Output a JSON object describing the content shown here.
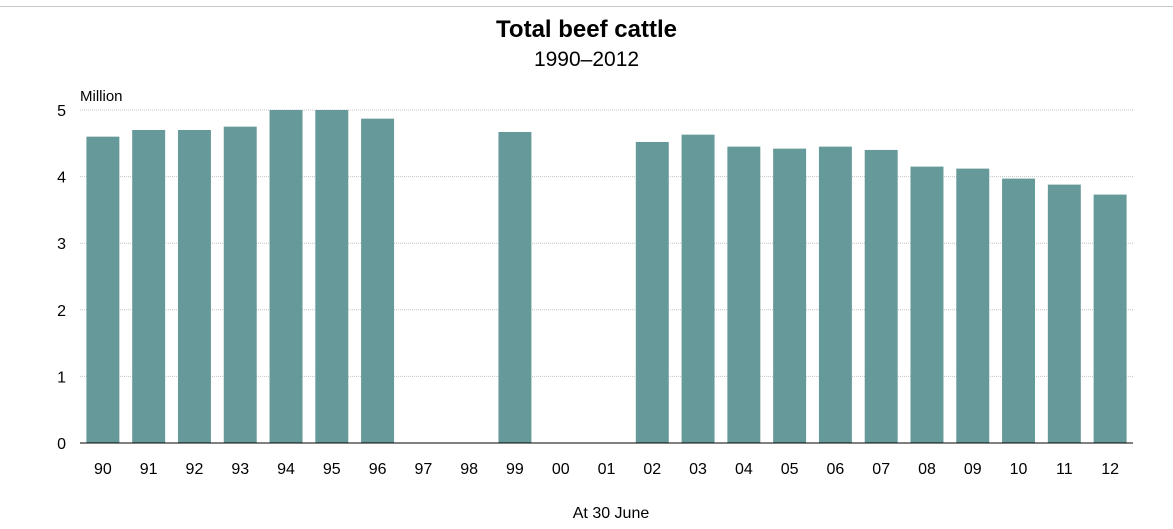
{
  "chart_data": {
    "type": "bar",
    "title": "Total beef cattle",
    "subtitle": "1990–2012",
    "ylabel": "Million",
    "xlabel": "At 30 June",
    "ylim": [
      0,
      5
    ],
    "yticks": [
      0,
      1,
      2,
      3,
      4,
      5
    ],
    "grid": true,
    "bar_color": "#669999",
    "categories": [
      "90",
      "91",
      "92",
      "93",
      "94",
      "95",
      "96",
      "97",
      "98",
      "99",
      "00",
      "01",
      "02",
      "03",
      "04",
      "05",
      "06",
      "07",
      "08",
      "09",
      "10",
      "11",
      "12"
    ],
    "values": [
      4.6,
      4.7,
      4.7,
      4.75,
      5.0,
      5.0,
      4.87,
      null,
      null,
      4.67,
      null,
      null,
      4.52,
      4.63,
      4.45,
      4.42,
      4.45,
      4.4,
      4.15,
      4.12,
      3.97,
      3.88,
      3.73
    ]
  }
}
